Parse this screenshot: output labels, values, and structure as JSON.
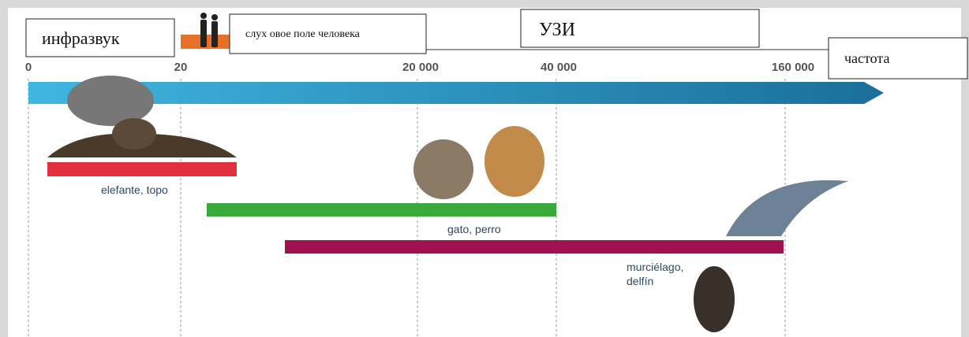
{
  "header": {
    "infrasound": "инфразвук",
    "hearing": "слух овое поле человека",
    "ultrasound": "УЗИ",
    "frequency": "частота"
  },
  "axis": {
    "ticks": [
      "0",
      "20",
      "20 000",
      "40 000",
      "160 000"
    ]
  },
  "ranges": [
    {
      "label": "elefante, topo"
    },
    {
      "label": "gato, perro"
    },
    {
      "label": [
        "murciélago,",
        "delfín"
      ]
    }
  ]
}
